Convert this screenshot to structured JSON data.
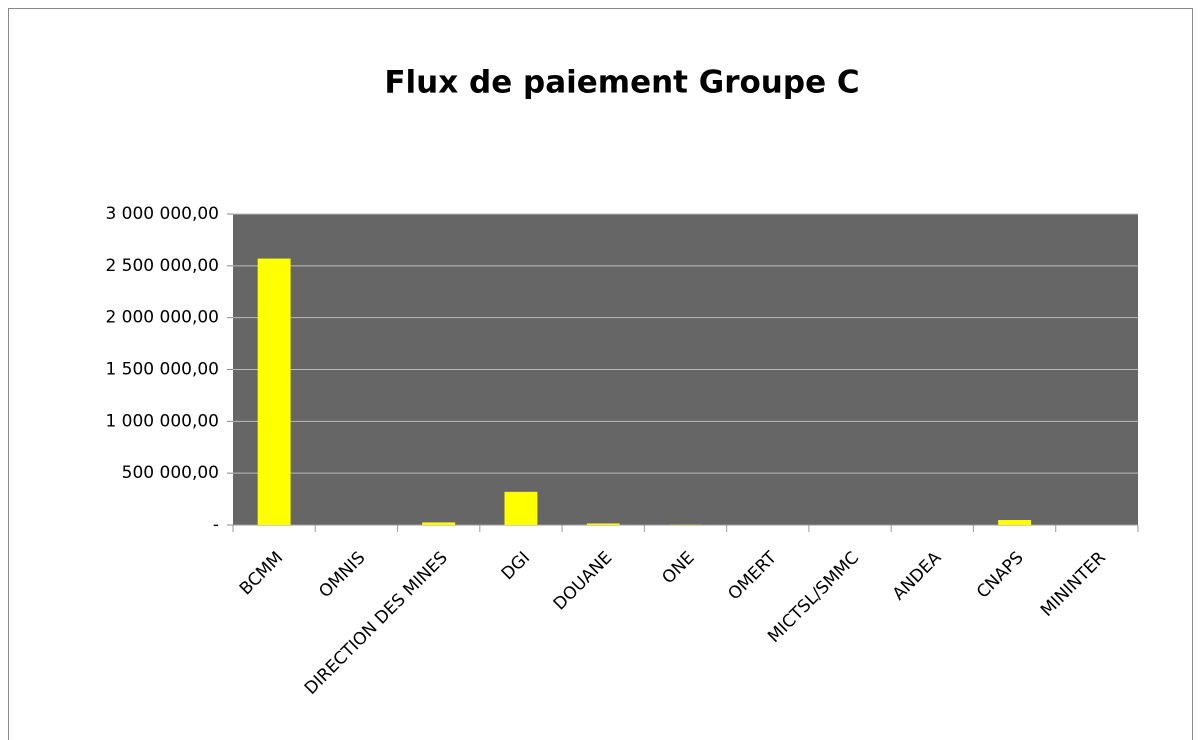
{
  "chart_data": {
    "type": "bar",
    "title": "Flux de paiement Groupe C",
    "categories": [
      "BCMM",
      "OMNIS",
      "DIRECTION DES MINES",
      "DGI",
      "DOUANE",
      "ONE",
      "OMERT",
      "MICTSL/SMMC",
      "ANDEA",
      "CNAPS",
      "MININTER"
    ],
    "values": [
      2570000,
      0,
      25000,
      320000,
      15000,
      2000,
      0,
      0,
      0,
      48000,
      0
    ],
    "color": "#ffff00",
    "ylim": [
      0,
      3000000
    ],
    "yticks": [
      {
        "value": 0,
        "label": "-"
      },
      {
        "value": 500000,
        "label": "500 000,00"
      },
      {
        "value": 1000000,
        "label": "1 000 000,00"
      },
      {
        "value": 1500000,
        "label": "1 500 000,00"
      },
      {
        "value": 2000000,
        "label": "2 000 000,00"
      },
      {
        "value": 2500000,
        "label": "2 500 000,00"
      },
      {
        "value": 3000000,
        "label": "3 000 000,00"
      }
    ],
    "grid": true
  }
}
